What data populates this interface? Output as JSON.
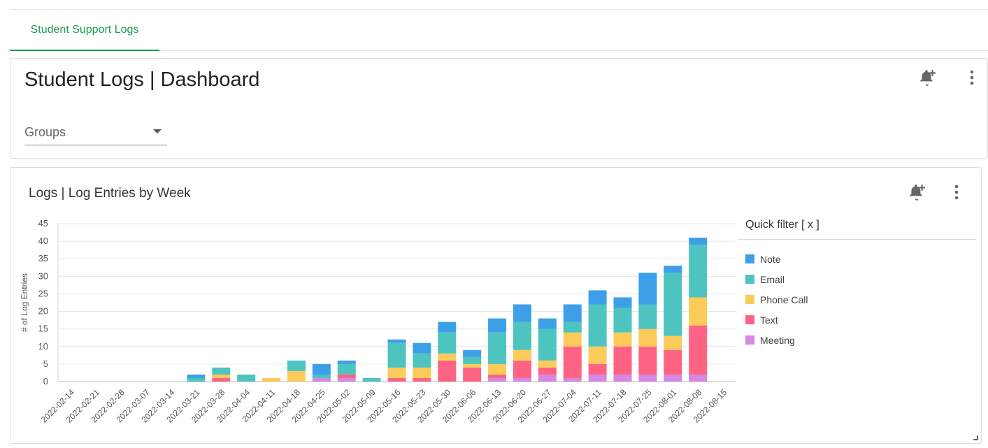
{
  "tabs": [
    {
      "label": "Student Support Logs"
    }
  ],
  "header": {
    "title": "Student Logs | Dashboard",
    "groups_placeholder": "Groups"
  },
  "chart_card": {
    "title": "Logs | Log Entries by Week",
    "legend_title": "Quick filter [ x ]"
  },
  "icons": {
    "add_alert": "bell-plus-icon",
    "more": "kebab-menu-icon",
    "dropdown": "caret-down-icon",
    "resize": "resize-handle-icon"
  },
  "colors": {
    "accent": "#1b9c4e",
    "note": "#3d9fe8",
    "email": "#4dc4bf",
    "phone_call": "#fccb5a",
    "text": "#ff6384",
    "meeting": "#d687e4"
  },
  "chart_data": {
    "type": "bar",
    "stacked": true,
    "title": "",
    "xlabel": "",
    "ylabel": "# of Log Entries",
    "ylim": [
      0,
      45
    ],
    "yticks": [
      0,
      5,
      10,
      15,
      20,
      25,
      30,
      35,
      40,
      45
    ],
    "grid": true,
    "legend_position": "right",
    "categories": [
      "2022-02-14",
      "2022-02-21",
      "2022-02-28",
      "2022-03-07",
      "2022-03-14",
      "2022-03-21",
      "2022-03-28",
      "2022-04-04",
      "2022-04-11",
      "2022-04-18",
      "2022-04-25",
      "2022-05-02",
      "2022-05-09",
      "2022-05-16",
      "2022-05-23",
      "2022-05-30",
      "2022-06-06",
      "2022-06-13",
      "2022-06-20",
      "2022-06-27",
      "2022-07-04",
      "2022-07-11",
      "2022-07-18",
      "2022-07-25",
      "2022-08-01",
      "2022-08-08",
      "2022-08-15"
    ],
    "series": [
      {
        "name": "Meeting",
        "color": "#d687e4",
        "values": [
          0,
          0,
          0,
          0,
          0,
          0,
          0,
          0,
          0,
          0,
          1,
          1,
          0,
          0,
          0,
          0,
          0,
          1,
          1,
          2,
          1,
          2,
          2,
          2,
          2,
          2,
          0
        ]
      },
      {
        "name": "Text",
        "color": "#ff6384",
        "values": [
          0,
          0,
          0,
          0,
          0,
          0,
          1,
          0,
          0,
          0,
          0,
          1,
          0,
          1,
          1,
          6,
          4,
          1,
          5,
          2,
          9,
          3,
          8,
          8,
          7,
          14,
          0
        ]
      },
      {
        "name": "Phone Call",
        "color": "#fccb5a",
        "values": [
          0,
          0,
          0,
          0,
          0,
          0,
          1,
          0,
          1,
          3,
          0,
          0,
          0,
          3,
          3,
          2,
          1,
          3,
          3,
          2,
          4,
          5,
          4,
          5,
          4,
          8,
          0
        ]
      },
      {
        "name": "Email",
        "color": "#4dc4bf",
        "values": [
          0,
          0,
          0,
          0,
          0,
          1,
          2,
          2,
          0,
          3,
          1,
          3,
          1,
          7,
          4,
          6,
          2,
          9,
          8,
          9,
          3,
          12,
          7,
          7,
          18,
          15,
          0
        ]
      },
      {
        "name": "Note",
        "color": "#3d9fe8",
        "values": [
          0,
          0,
          0,
          0,
          0,
          1,
          0,
          0,
          0,
          0,
          3,
          1,
          0,
          1,
          3,
          3,
          2,
          4,
          5,
          3,
          5,
          4,
          3,
          9,
          2,
          2,
          0
        ]
      }
    ]
  }
}
